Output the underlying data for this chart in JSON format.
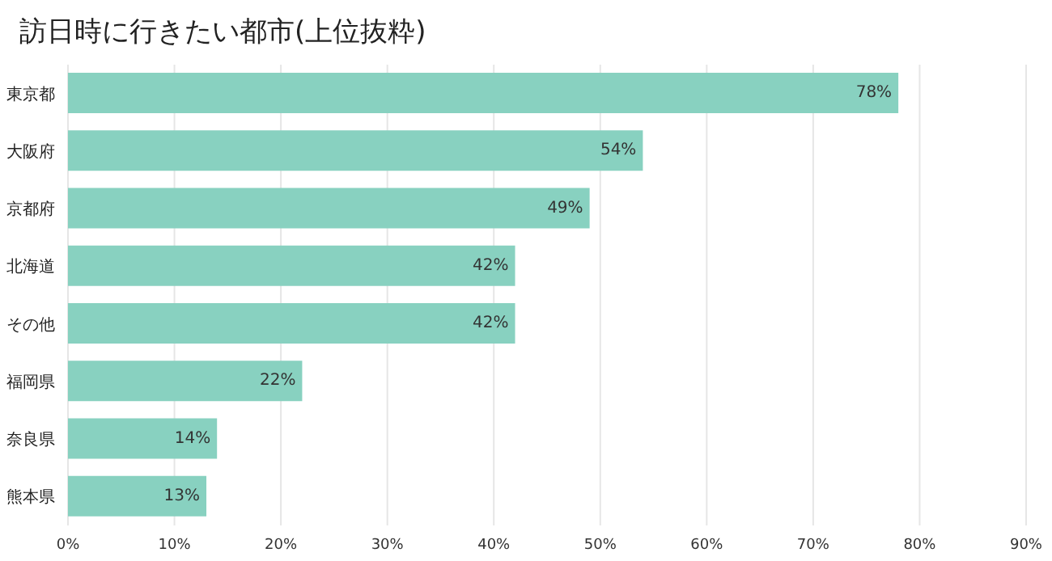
{
  "chart_data": {
    "type": "bar",
    "orientation": "horizontal",
    "title": "訪日時に行きたい都市(上位抜粋)",
    "categories": [
      "東京都",
      "大阪府",
      "京都府",
      "北海道",
      "その他",
      "福岡県",
      "奈良県",
      "熊本県"
    ],
    "values": [
      78,
      54,
      49,
      42,
      42,
      22,
      14,
      13
    ],
    "value_labels": [
      "78%",
      "54%",
      "49%",
      "42%",
      "42%",
      "22%",
      "14%",
      "13%"
    ],
    "color": "#88d1c0",
    "xlim": [
      0,
      90
    ],
    "xticks": [
      {
        "value": 0,
        "label": "0%"
      },
      {
        "value": 10,
        "label": "10%"
      },
      {
        "value": 20,
        "label": "20%"
      },
      {
        "value": 30,
        "label": "30%"
      },
      {
        "value": 40,
        "label": "40%"
      },
      {
        "value": 50,
        "label": "50%"
      },
      {
        "value": 60,
        "label": "60%"
      },
      {
        "value": 70,
        "label": "70%"
      },
      {
        "value": 80,
        "label": "80%"
      },
      {
        "value": 90,
        "label": "90%"
      }
    ],
    "grid": "x",
    "legend": false
  }
}
